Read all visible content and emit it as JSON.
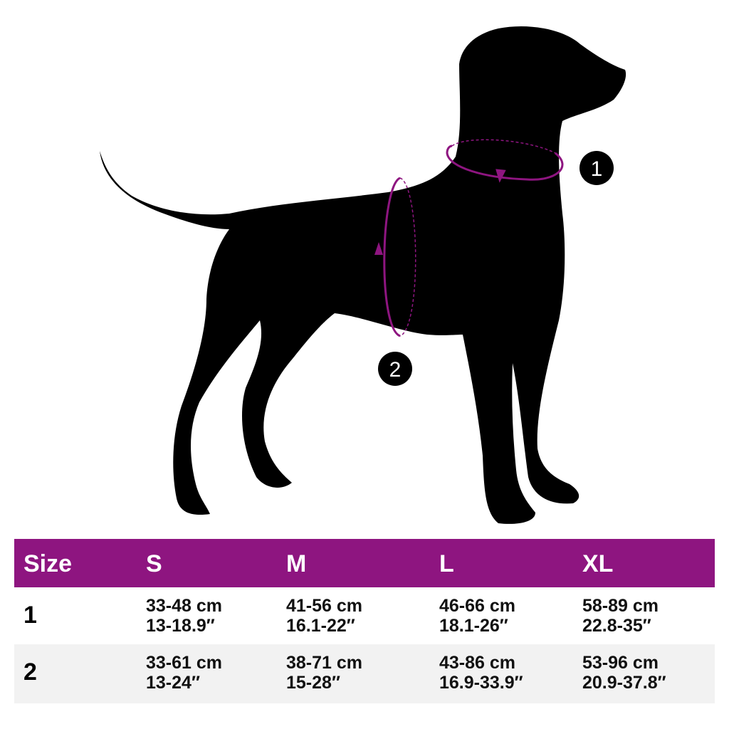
{
  "colors": {
    "accent": "#8e1580",
    "silhouette": "#000000",
    "row_alt": "#f2f2f2"
  },
  "markers": [
    {
      "label": "1"
    },
    {
      "label": "2"
    }
  ],
  "table": {
    "headers": [
      "Size",
      "S",
      "M",
      "L",
      "XL"
    ],
    "rows": [
      {
        "label": "1",
        "cells": [
          [
            "33-48 cm",
            "13-18.9″"
          ],
          [
            "41-56 cm",
            "16.1-22″"
          ],
          [
            "46-66 cm",
            "18.1-26″"
          ],
          [
            "58-89 cm",
            "22.8-35″"
          ]
        ]
      },
      {
        "label": "2",
        "cells": [
          [
            "33-61 cm",
            "13-24″"
          ],
          [
            "38-71 cm",
            "15-28″"
          ],
          [
            "43-86 cm",
            "16.9-33.9″"
          ],
          [
            "53-96 cm",
            "20.9-37.8″"
          ]
        ]
      }
    ]
  }
}
